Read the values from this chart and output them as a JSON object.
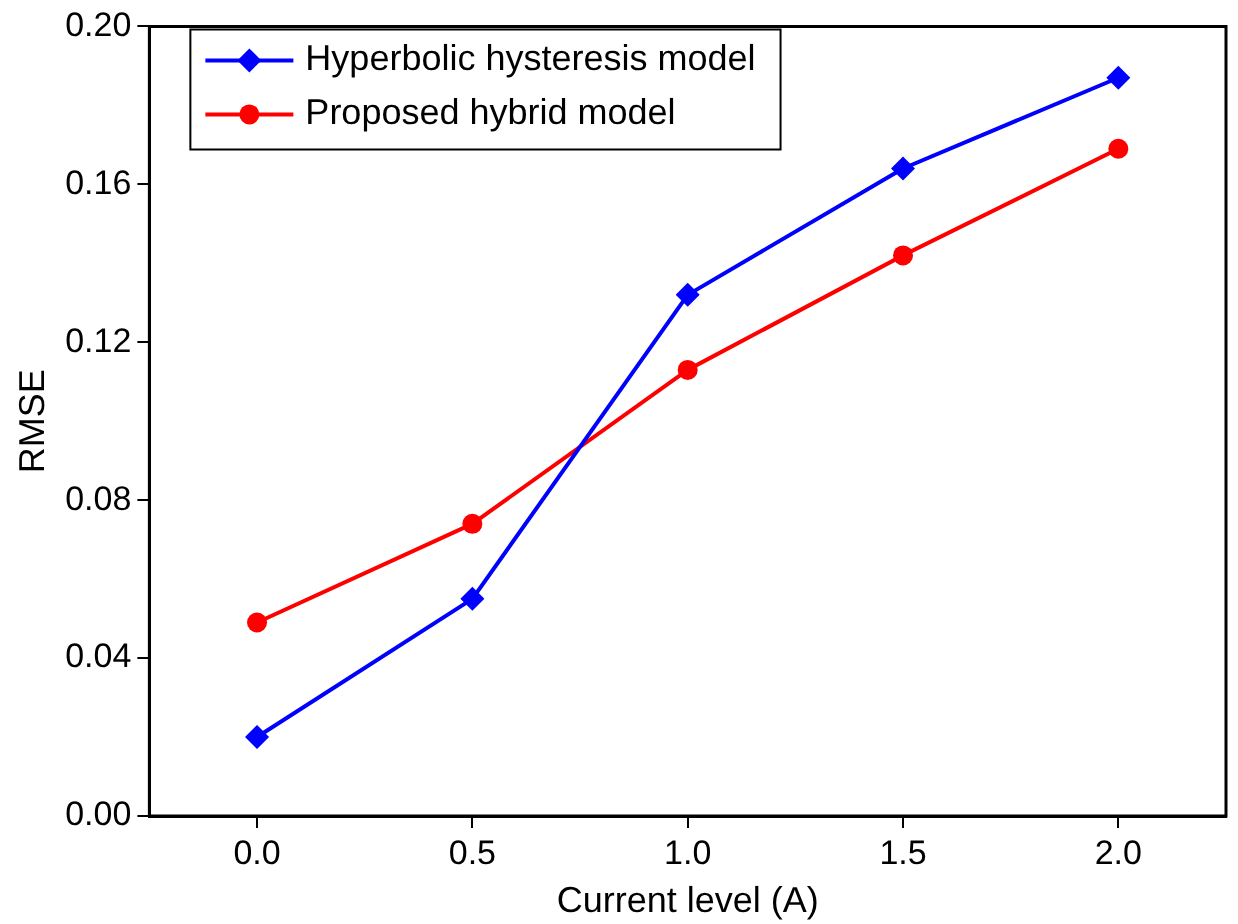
{
  "chart_data": {
    "type": "line",
    "xlabel": "Current level (A)",
    "ylabel": "RMSE",
    "x": [
      0,
      0.5,
      1,
      1.5,
      2
    ],
    "series": [
      {
        "name": "Hyperbolic hysteresis model",
        "color": "#0000ff",
        "marker": "diamond",
        "values": [
          0.02,
          0.055,
          0.132,
          0.164,
          0.187
        ]
      },
      {
        "name": "Proposed hybrid model",
        "color": "#ff0000",
        "marker": "circle",
        "values": [
          0.049,
          0.074,
          0.113,
          0.142,
          0.169
        ]
      }
    ],
    "xlim": [
      -0.25,
      2.25
    ],
    "xticks": [
      {
        "value": 0,
        "label": "0.0"
      },
      {
        "value": 0.5,
        "label": "0.5"
      },
      {
        "value": 1,
        "label": "1.0"
      },
      {
        "value": 1.5,
        "label": "1.5"
      },
      {
        "value": 2,
        "label": "2.0"
      }
    ],
    "ylim": [
      0,
      0.2
    ],
    "yticks": [
      {
        "value": 0,
        "label": "0.00"
      },
      {
        "value": 0.04,
        "label": "0.04"
      },
      {
        "value": 0.08,
        "label": "0.08"
      },
      {
        "value": 0.12,
        "label": "0.12"
      },
      {
        "value": 0.16,
        "label": "0.16"
      },
      {
        "value": 0.2,
        "label": "0.20"
      }
    ],
    "grid": false,
    "legend": "top left",
    "line_style": "solid"
  }
}
